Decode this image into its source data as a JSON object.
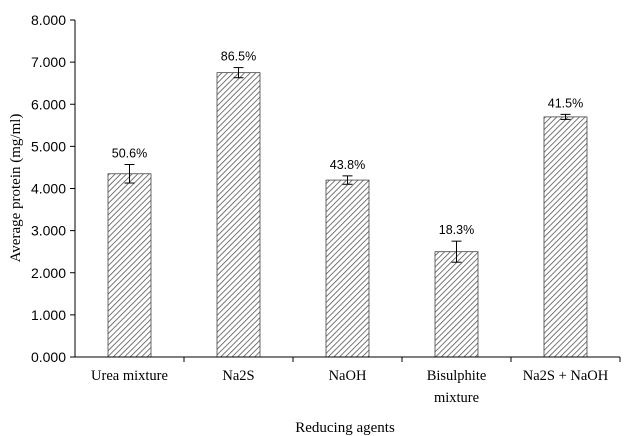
{
  "chart_data": {
    "type": "bar",
    "categories": [
      [
        "Urea mixture"
      ],
      [
        "Na2S"
      ],
      [
        "NaOH"
      ],
      [
        "Bisulphite",
        "mixture"
      ],
      [
        "Na2S + NaOH"
      ]
    ],
    "values": [
      4.35,
      6.75,
      4.2,
      2.5,
      5.7
    ],
    "errors": [
      0.22,
      0.12,
      0.1,
      0.25,
      0.06
    ],
    "data_labels": [
      "50.6%",
      "86.5%",
      "43.8%",
      "18.3%",
      "41.5%"
    ],
    "xlabel": "Reducing agents",
    "ylabel": "Average protein (mg/ml)",
    "ylim": [
      0,
      8
    ],
    "yticks": [
      "0.000",
      "1.000",
      "2.000",
      "3.000",
      "4.000",
      "5.000",
      "6.000",
      "7.000",
      "8.000"
    ],
    "bar_fill": "hatched",
    "bar_color": "#d9d9d9",
    "grid": false,
    "legend": "none"
  }
}
